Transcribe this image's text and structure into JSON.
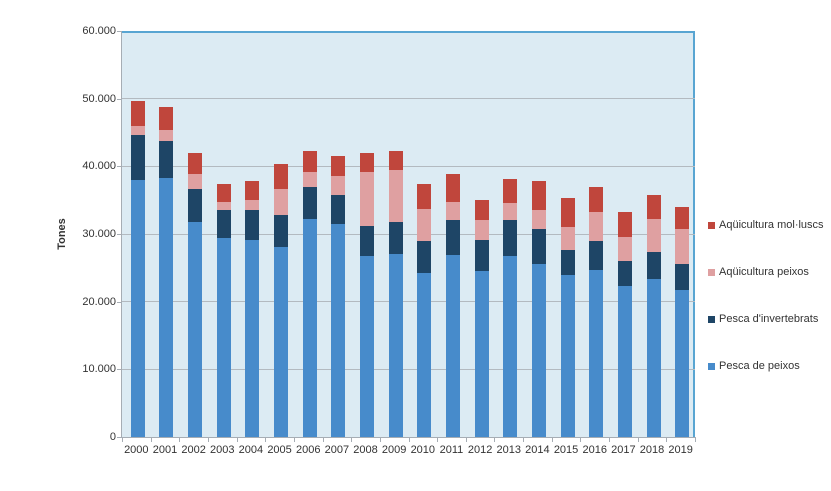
{
  "chart_data": {
    "type": "bar",
    "stacked": true,
    "title": "",
    "xlabel": "",
    "ylabel": "Tones",
    "ylim": [
      0,
      60000
    ],
    "grid": true,
    "legend_position": "right",
    "plot_background": "#dcebf3",
    "plot_border_color": "#58a5d2",
    "gridline_color": "#b3bac0",
    "axis_color": "#a6adb4",
    "text_color": "#333333",
    "categories": [
      "2000",
      "2001",
      "2002",
      "2003",
      "2004",
      "2005",
      "2006",
      "2007",
      "2008",
      "2009",
      "2010",
      "2011",
      "2012",
      "2013",
      "2014",
      "2015",
      "2016",
      "2017",
      "2018",
      "2019"
    ],
    "ytick_labels": [
      "60.000",
      "50.000",
      "40.000",
      "30.000",
      "20.000",
      "10.000",
      "0"
    ],
    "series": [
      {
        "name": "Pesca de peixos",
        "color": "#478bcb",
        "values": [
          38000,
          38300,
          31800,
          29400,
          29100,
          28100,
          32200,
          31500,
          26700,
          27000,
          24200,
          26900,
          24500,
          26700,
          25500,
          23900,
          24700,
          22300,
          23300,
          21700
        ]
      },
      {
        "name": "Pesca d'invertebrats",
        "color": "#1e4566",
        "values": [
          6600,
          5400,
          4800,
          4100,
          4500,
          4700,
          4700,
          4200,
          4500,
          4800,
          4700,
          5100,
          4600,
          5400,
          5200,
          3700,
          4200,
          3700,
          4000,
          3800
        ]
      },
      {
        "name": "Aqüicultura peixos",
        "color": "#dfa0a1",
        "values": [
          1400,
          1600,
          2200,
          1200,
          1400,
          3800,
          2300,
          2900,
          7900,
          7600,
          4800,
          2800,
          3000,
          2500,
          2900,
          3500,
          4300,
          3600,
          4900,
          5200
        ]
      },
      {
        "name": "Aqüicultura mol·luscs",
        "color": "#c0463c",
        "values": [
          3700,
          3500,
          3200,
          2700,
          2800,
          3700,
          3100,
          2900,
          2900,
          2800,
          3700,
          4000,
          2900,
          3500,
          4300,
          4200,
          3800,
          3600,
          3500,
          3300
        ]
      }
    ]
  }
}
